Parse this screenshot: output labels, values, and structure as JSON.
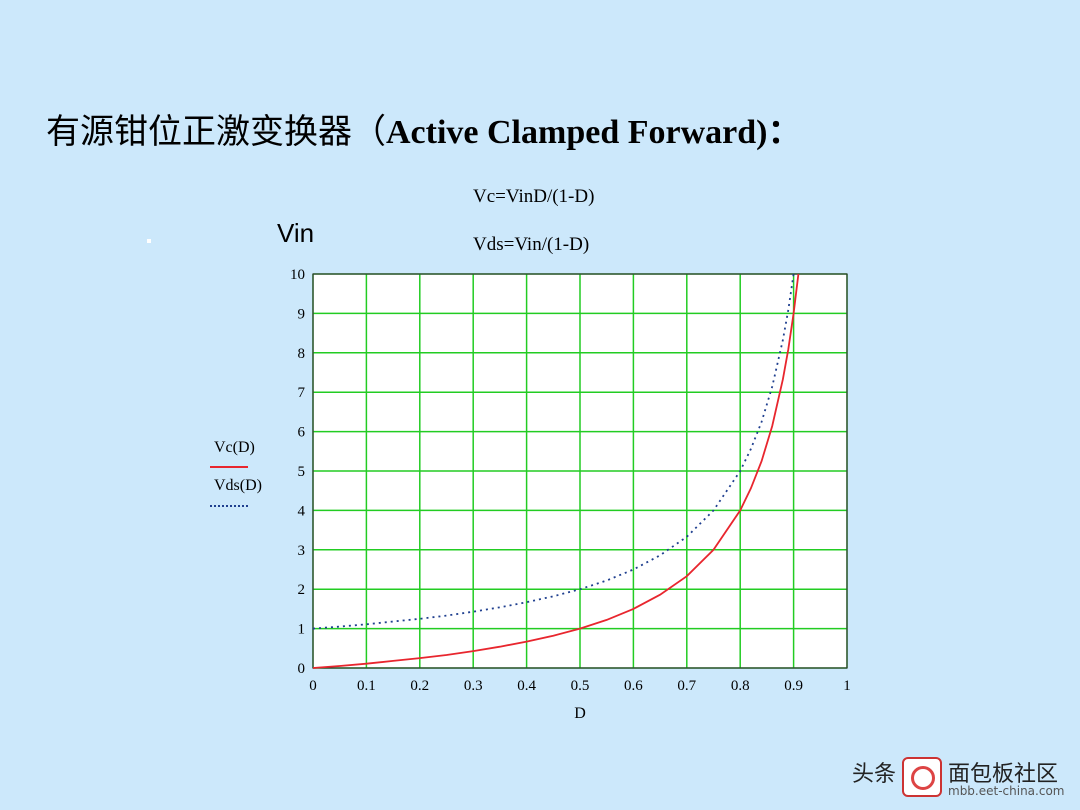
{
  "slide": {
    "title_cn": "有源钳位正激变换器（",
    "title_en": "Active Clamped Forward",
    "title_end": ")：",
    "bullet": "▪"
  },
  "formulas": {
    "vc": "Vc=VinD/(1-D)",
    "vds": "Vds=Vin/(1-D)"
  },
  "watermark": {
    "main_left": "头条",
    "main_right": "面包板社区",
    "sub": "mbb.eet-china.com"
  },
  "colors": {
    "background": "#cce8fb",
    "plot_bg": "#ffffff",
    "grid": "#22cc22",
    "vc_line": "#e8262e",
    "vds_line": "#1f3f8f"
  },
  "chart_data": {
    "type": "line",
    "title": "Vin",
    "xlabel": "D",
    "ylabel": "",
    "xlim": [
      0,
      1
    ],
    "ylim": [
      0,
      10
    ],
    "x_ticks": [
      "0",
      "0.1",
      "0.2",
      "0.3",
      "0.4",
      "0.5",
      "0.6",
      "0.7",
      "0.8",
      "0.9",
      "1"
    ],
    "y_ticks": [
      "0",
      "1",
      "2",
      "3",
      "4",
      "5",
      "6",
      "7",
      "8",
      "9",
      "10"
    ],
    "grid": true,
    "legend_placement": "left",
    "series": [
      {
        "name": "Vc(D)",
        "style": "solid",
        "x": [
          0,
          0.05,
          0.1,
          0.15,
          0.2,
          0.25,
          0.3,
          0.35,
          0.4,
          0.45,
          0.5,
          0.55,
          0.6,
          0.65,
          0.7,
          0.75,
          0.8,
          0.82,
          0.84,
          0.86,
          0.88,
          0.89,
          0.9,
          0.909
        ],
        "y": [
          0,
          0.05,
          0.11,
          0.18,
          0.25,
          0.33,
          0.43,
          0.54,
          0.67,
          0.82,
          1.0,
          1.22,
          1.5,
          1.86,
          2.33,
          3.0,
          4.0,
          4.56,
          5.25,
          6.14,
          7.33,
          8.09,
          9.0,
          10.0
        ]
      },
      {
        "name": "Vds(D)",
        "style": "dotted",
        "x": [
          0,
          0.05,
          0.1,
          0.15,
          0.2,
          0.25,
          0.3,
          0.35,
          0.4,
          0.45,
          0.5,
          0.55,
          0.6,
          0.65,
          0.7,
          0.75,
          0.8,
          0.82,
          0.84,
          0.86,
          0.88,
          0.89,
          0.9
        ],
        "y": [
          1.0,
          1.05,
          1.11,
          1.18,
          1.25,
          1.33,
          1.43,
          1.54,
          1.67,
          1.82,
          2.0,
          2.22,
          2.5,
          2.86,
          3.33,
          4.0,
          5.0,
          5.56,
          6.25,
          7.14,
          8.33,
          9.09,
          10.0
        ]
      }
    ]
  }
}
